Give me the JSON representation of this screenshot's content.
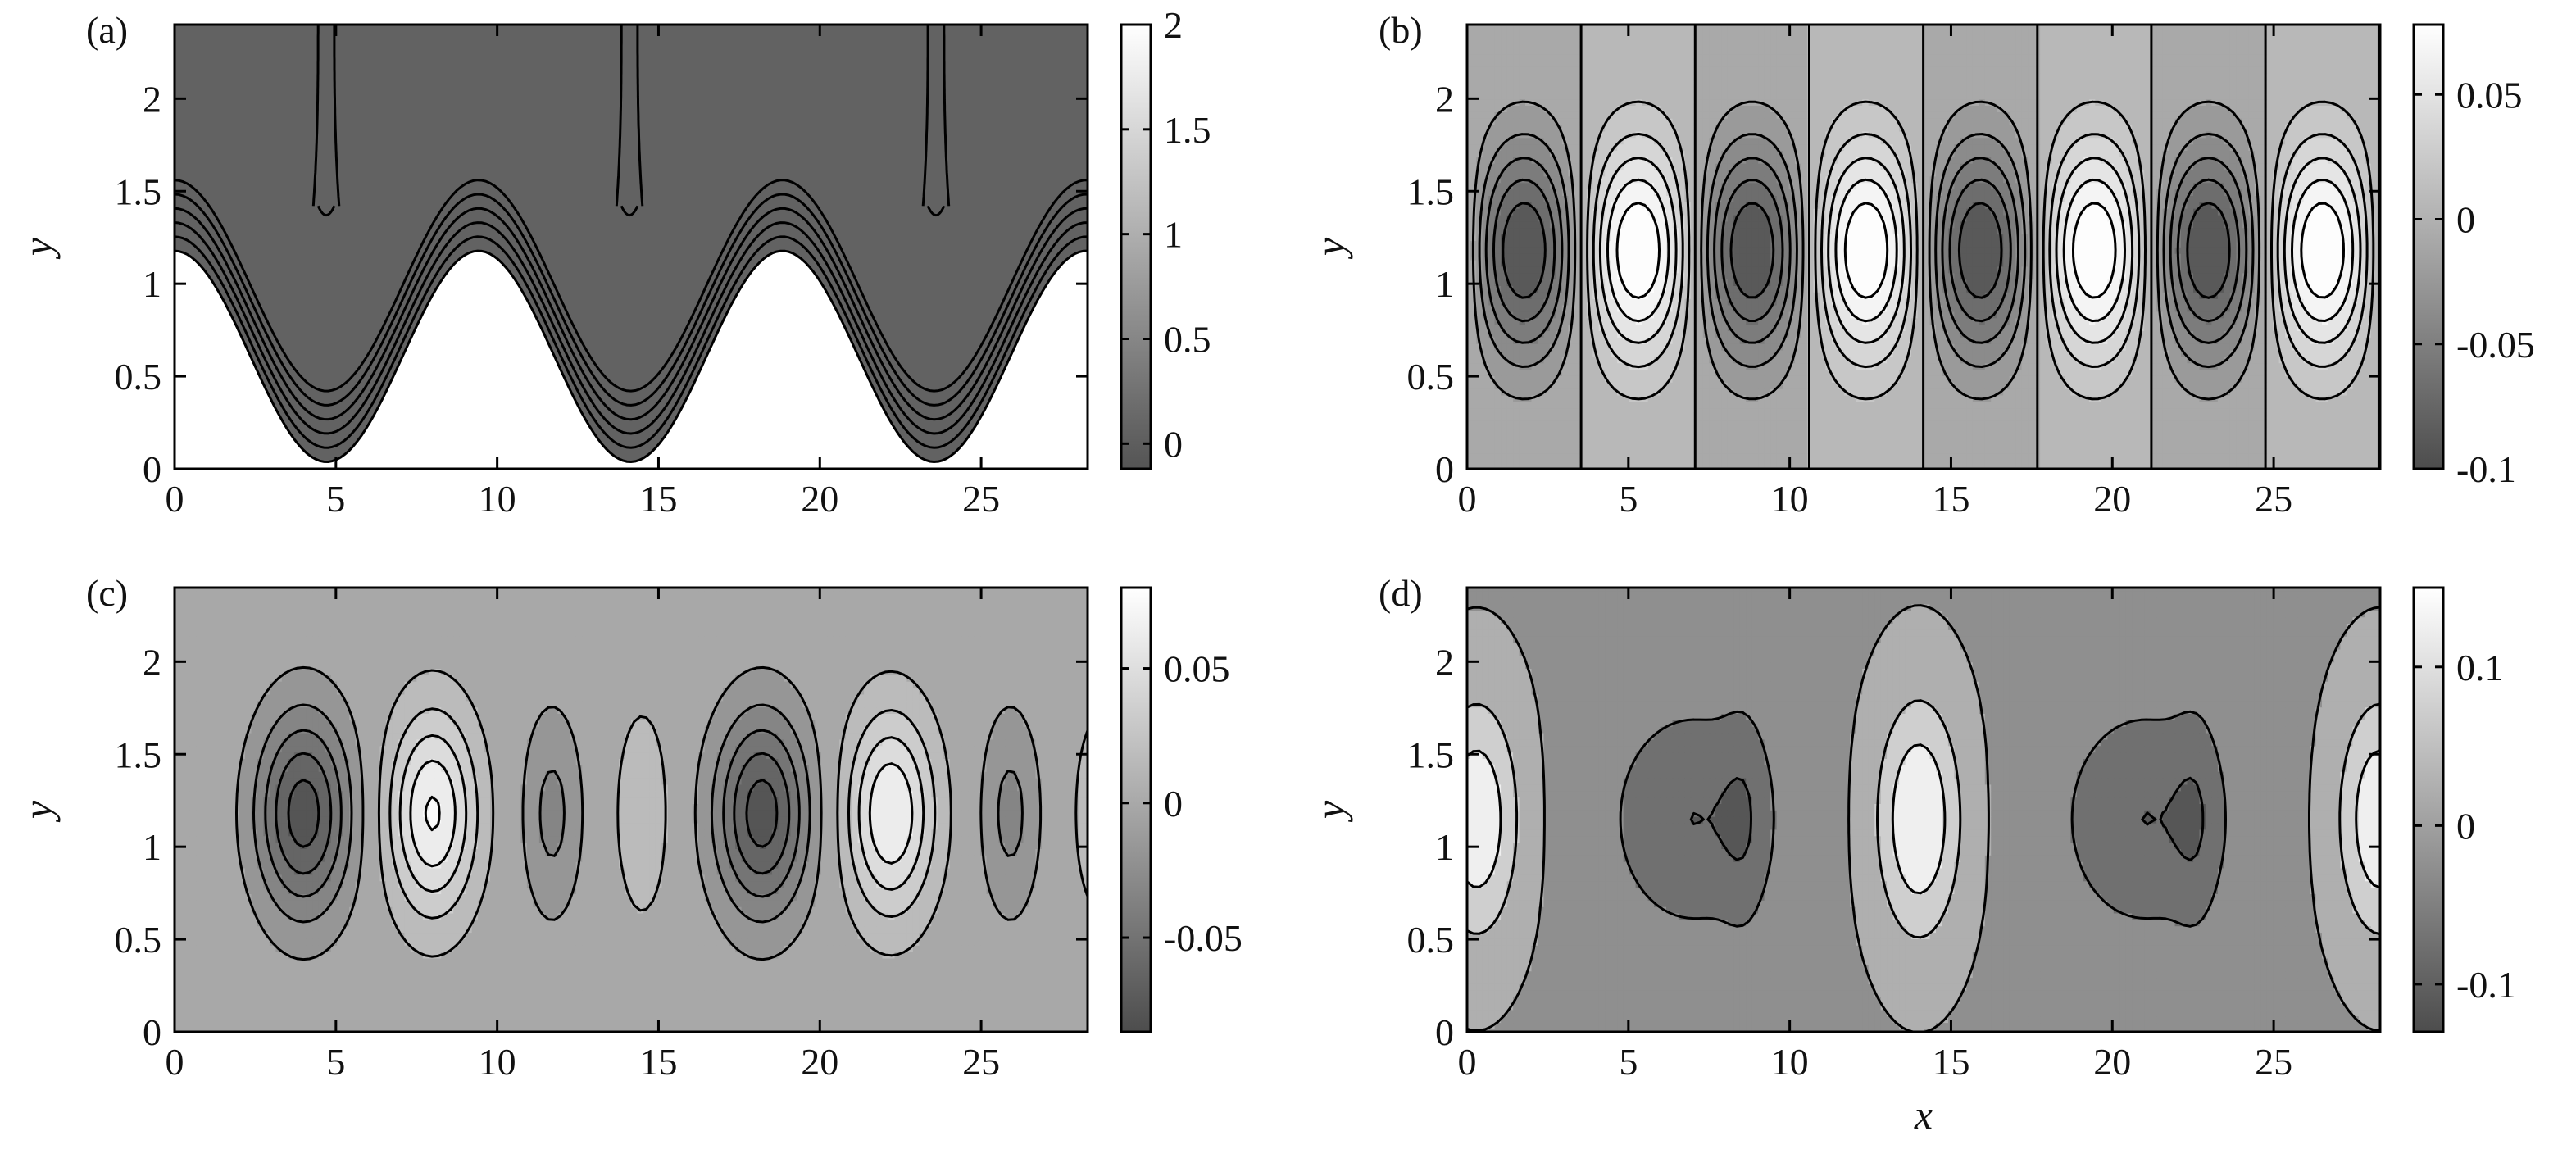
{
  "chart_data": [
    {
      "type": "contour",
      "panel_label": "(a)",
      "xlabel": "",
      "ylabel": "y",
      "xlim": [
        0,
        28.3
      ],
      "ylim": [
        0,
        2.4
      ],
      "xticks": [
        "0",
        "5",
        "10",
        "15",
        "20",
        "25"
      ],
      "yticks": [
        "0",
        "0.5",
        "1",
        "1.5",
        "2"
      ],
      "colorbar": {
        "ticks": [
          "0",
          "0.5",
          "1",
          "1.5",
          "2"
        ],
        "range": [
          -0.12,
          2.0
        ],
        "gray_range": [
          0.33,
          1.0
        ]
      },
      "field": {
        "kind": "wave",
        "amp": 0.57,
        "ymid": 0.75,
        "k": 0.667,
        "phase": 0.0,
        "scale": 2.5,
        "levels": [
          0.5,
          0.8,
          1.1,
          1.4,
          1.7,
          2.0
        ],
        "bands": [
          2.0,
          1.6,
          1.3,
          1.0,
          0.7,
          0.4,
          0.05
        ]
      }
    },
    {
      "type": "contour",
      "panel_label": "(b)",
      "xlabel": "",
      "ylabel": "y",
      "xlim": [
        0,
        28.3
      ],
      "ylim": [
        0,
        2.4
      ],
      "xticks": [
        "0",
        "5",
        "10",
        "15",
        "20",
        "25"
      ],
      "yticks": [
        "0",
        "0.5",
        "1",
        "1.5",
        "2"
      ],
      "colorbar": {
        "ticks": [
          "0.05",
          "0",
          "-0.05",
          "-0.1"
        ],
        "tick_values": [
          0.05,
          0,
          -0.05,
          -0.1
        ],
        "range": [
          -0.1,
          0.078
        ],
        "gray_range": [
          0.3,
          1.0
        ]
      },
      "field": {
        "kind": "cells",
        "amp": 0.09,
        "lambda": 7.07,
        "phase": 0.0,
        "yc": 1.18,
        "sigma": 0.6,
        "levels": [
          -0.075,
          -0.06,
          -0.045,
          -0.03,
          -0.015,
          0.0,
          0.015,
          0.03,
          0.045,
          0.06,
          0.075
        ],
        "vmin": -0.1,
        "vmax": 0.078
      }
    },
    {
      "type": "contour",
      "panel_label": "(c)",
      "xlabel": "",
      "ylabel": "y",
      "xlim": [
        0,
        28.3
      ],
      "ylim": [
        0,
        2.4
      ],
      "xticks": [
        "0",
        "5",
        "10",
        "15",
        "20",
        "25"
      ],
      "yticks": [
        "0",
        "0.5",
        "1",
        "1.5",
        "2"
      ],
      "colorbar": {
        "ticks": [
          "0.05",
          "0",
          "-0.05"
        ],
        "tick_values": [
          0.05,
          0,
          -0.05
        ],
        "range": [
          -0.085,
          0.08
        ],
        "gray_range": [
          0.3,
          1.0
        ]
      },
      "field": {
        "kind": "blobs",
        "yc": 1.18,
        "sigma_y": 0.55,
        "blobs": [
          {
            "x": 4.0,
            "a": -0.078,
            "sx": 1.45
          },
          {
            "x": 8.0,
            "a": 0.072,
            "sx": 1.35
          },
          {
            "x": 11.7,
            "a": -0.03,
            "sx": 0.9
          },
          {
            "x": 14.5,
            "a": 0.025,
            "sx": 0.8
          },
          {
            "x": 18.2,
            "a": -0.078,
            "sx": 1.45
          },
          {
            "x": 22.2,
            "a": 0.07,
            "sx": 1.35
          },
          {
            "x": 25.9,
            "a": -0.03,
            "sx": 0.9
          },
          {
            "x": 28.7,
            "a": 0.025,
            "sx": 0.8
          }
        ],
        "levels": [
          -0.07,
          -0.055,
          -0.04,
          -0.025,
          -0.01,
          0.01,
          0.025,
          0.04,
          0.055,
          0.07
        ],
        "vmin": -0.085,
        "vmax": 0.08
      }
    },
    {
      "type": "contour",
      "panel_label": "(d)",
      "xlabel": "x",
      "ylabel": "y",
      "xlim": [
        0,
        28.3
      ],
      "ylim": [
        0,
        2.4
      ],
      "xticks": [
        "0",
        "5",
        "10",
        "15",
        "20",
        "25"
      ],
      "yticks": [
        "0",
        "0.5",
        "1",
        "1.5",
        "2"
      ],
      "colorbar": {
        "ticks": [
          "0.1",
          "0",
          "-0.1"
        ],
        "tick_values": [
          0.1,
          0,
          -0.1
        ],
        "range": [
          -0.13,
          0.15
        ],
        "gray_range": [
          0.3,
          1.0
        ]
      },
      "field": {
        "kind": "blobs",
        "yc": 1.15,
        "sigma_y": 0.62,
        "blobs": [
          {
            "x": 0.3,
            "a": 0.15,
            "sx": 1.25
          },
          {
            "x": 14.0,
            "a": 0.16,
            "sx": 1.25
          },
          {
            "x": 28.3,
            "a": 0.15,
            "sx": 1.25
          },
          {
            "x": 7.0,
            "a": -0.095,
            "sx": 2.6
          },
          {
            "x": 21.0,
            "a": -0.095,
            "sx": 2.6
          },
          {
            "x": 8.6,
            "a": -0.04,
            "sx": 0.7
          },
          {
            "x": 22.6,
            "a": -0.04,
            "sx": 0.7
          }
        ],
        "base": -0.005,
        "levels": [
          -0.1,
          -0.05,
          0.0,
          0.05,
          0.1
        ],
        "vmin": -0.13,
        "vmax": 0.15
      }
    }
  ]
}
